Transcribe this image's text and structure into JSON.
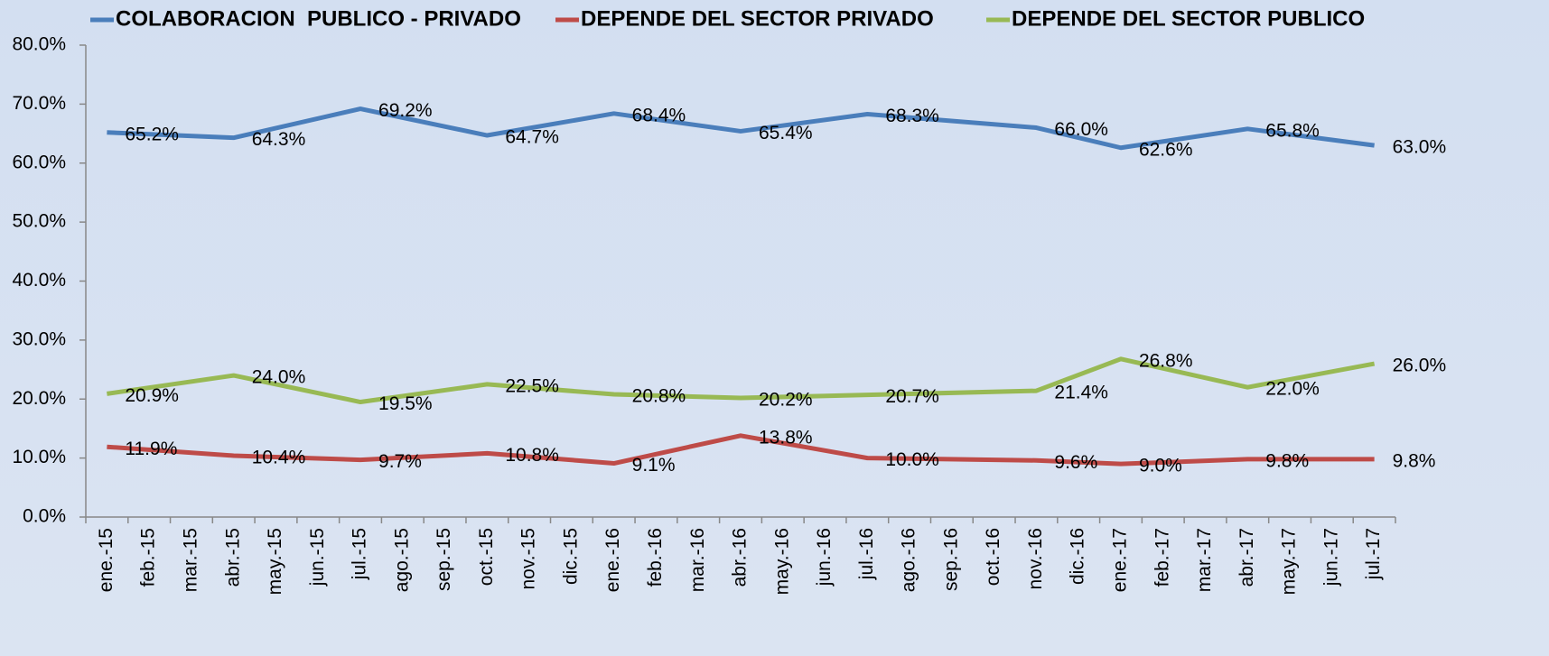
{
  "chart_data": {
    "type": "line",
    "span_gaps": true,
    "categories": [
      "ene.-15",
      "feb.-15",
      "mar.-15",
      "abr.-15",
      "may.-15",
      "jun.-15",
      "jul.-15",
      "ago.-15",
      "sep.-15",
      "oct.-15",
      "nov.-15",
      "dic.-15",
      "ene.-16",
      "feb.-16",
      "mar.-16",
      "abr.-16",
      "may.-16",
      "jun.-16",
      "jul.-16",
      "ago.-16",
      "sep.-16",
      "oct.-16",
      "nov.-16",
      "dic.-16",
      "ene.-17",
      "feb.-17",
      "mar.-17",
      "abr.-17",
      "may.-17",
      "jun.-17",
      "jul.-17"
    ],
    "series": [
      {
        "name": "COLABORACION  PUBLICO - PRIVADO",
        "color": "#4a7ebb",
        "values": [
          65.2,
          null,
          null,
          64.3,
          null,
          null,
          69.2,
          null,
          null,
          64.7,
          null,
          null,
          68.4,
          null,
          null,
          65.4,
          null,
          null,
          68.3,
          null,
          null,
          null,
          66.0,
          null,
          62.6,
          null,
          null,
          65.8,
          null,
          null,
          63.0
        ],
        "value_labels": [
          "65.2%",
          null,
          null,
          "64.3%",
          null,
          null,
          "69.2%",
          null,
          null,
          "64.7%",
          null,
          null,
          "68.4%",
          null,
          null,
          "65.4%",
          null,
          null,
          "68.3%",
          null,
          null,
          null,
          "66.0%",
          null,
          "62.6%",
          null,
          null,
          "65.8%",
          null,
          null,
          "63.0%"
        ]
      },
      {
        "name": "DEPENDE DEL SECTOR PRIVADO",
        "color": "#be4b48",
        "values": [
          11.9,
          null,
          null,
          10.4,
          null,
          null,
          9.7,
          null,
          null,
          10.8,
          null,
          null,
          9.1,
          null,
          null,
          13.8,
          null,
          null,
          10.0,
          null,
          null,
          null,
          9.6,
          null,
          9.0,
          null,
          null,
          9.8,
          null,
          null,
          9.8
        ],
        "value_labels": [
          "11.9%",
          null,
          null,
          "10.4%",
          null,
          null,
          "9.7%",
          null,
          null,
          "10.8%",
          null,
          null,
          "9.1%",
          null,
          null,
          "13.8%",
          null,
          null,
          "10.0%",
          null,
          null,
          null,
          "9.6%",
          null,
          "9.0%",
          null,
          null,
          "9.8%",
          null,
          null,
          "9.8%"
        ]
      },
      {
        "name": "DEPENDE DEL SECTOR PUBLICO",
        "color": "#98b954",
        "values": [
          20.9,
          null,
          null,
          24.0,
          null,
          null,
          19.5,
          null,
          null,
          22.5,
          null,
          null,
          20.8,
          null,
          null,
          20.2,
          null,
          null,
          20.7,
          null,
          null,
          null,
          21.4,
          null,
          26.8,
          null,
          null,
          22.0,
          null,
          null,
          26.0
        ],
        "value_labels": [
          "20.9%",
          null,
          null,
          "24.0%",
          null,
          null,
          "19.5%",
          null,
          null,
          "22.5%",
          null,
          null,
          "20.8%",
          null,
          null,
          "20.2%",
          null,
          null,
          "20.7%",
          null,
          null,
          null,
          "21.4%",
          null,
          "26.8%",
          null,
          null,
          "22.0%",
          null,
          null,
          "26.0%"
        ]
      }
    ],
    "ylim": [
      0,
      80
    ],
    "yticks": [
      {
        "value": 0,
        "label": "0.0%"
      },
      {
        "value": 10,
        "label": "10.0%"
      },
      {
        "value": 20,
        "label": "20.0%"
      },
      {
        "value": 30,
        "label": "30.0%"
      },
      {
        "value": 40,
        "label": "40.0%"
      },
      {
        "value": 50,
        "label": "50.0%"
      },
      {
        "value": 60,
        "label": "60.0%"
      },
      {
        "value": 70,
        "label": "70.0%"
      },
      {
        "value": 80,
        "label": "80.0%"
      }
    ],
    "legend": "top"
  }
}
